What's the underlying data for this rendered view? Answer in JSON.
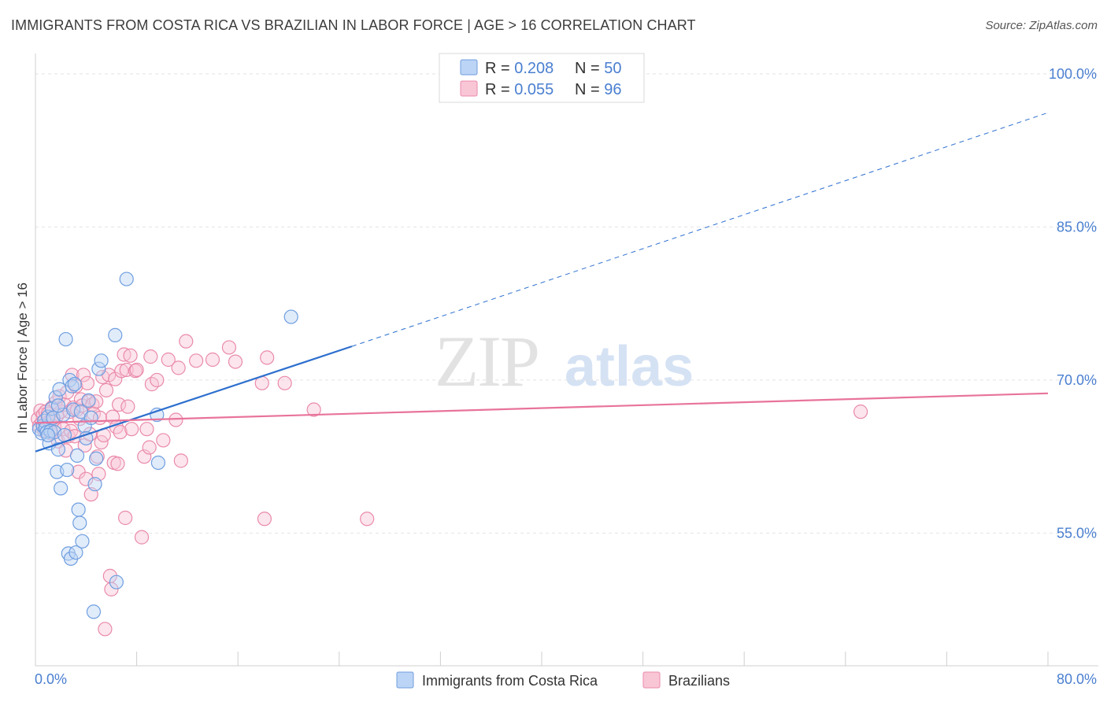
{
  "header": {
    "title": "IMMIGRANTS FROM COSTA RICA VS BRAZILIAN IN LABOR FORCE | AGE > 16 CORRELATION CHART",
    "source": "Source: ZipAtlas.com"
  },
  "legend": {
    "series": [
      {
        "r_label": "R = ",
        "r_value": "0.208",
        "n_label": "N = ",
        "n_value": "50"
      },
      {
        "r_label": "R = ",
        "r_value": "0.055",
        "n_label": "N = ",
        "n_value": "96"
      }
    ],
    "bottom": [
      "Immigrants from Costa Rica",
      "Brazilians"
    ]
  },
  "watermark": {
    "part1": "ZIP",
    "part2": "atlas"
  },
  "colors": {
    "blue_fill": "#bcd4f5",
    "blue_stroke": "#6f9ee0",
    "blue_line": "#2d6fce",
    "pink_fill": "#f9c6d6",
    "pink_stroke": "#ea8aaa",
    "pink_line": "#e8739b",
    "axis_text": "#4a7fd0"
  },
  "chart_data": {
    "type": "scatter",
    "title": "IMMIGRANTS FROM COSTA RICA VS BRAZILIAN IN LABOR FORCE | AGE > 16 CORRELATION CHART",
    "xlabel": "",
    "ylabel": "In Labor Force | Age > 16",
    "xlim": [
      0,
      80
    ],
    "ylim": [
      42,
      102
    ],
    "x_tick_labels": [
      "0.0%",
      "80.0%"
    ],
    "y_ticks": [
      55,
      70,
      85,
      100
    ],
    "y_tick_labels": [
      "55.0%",
      "70.0%",
      "85.0%",
      "100.0%"
    ],
    "grid": true,
    "legend_position": "top-center",
    "series": [
      {
        "name": "Immigrants from Costa Rica",
        "R": 0.208,
        "N": 50,
        "trend": {
          "x0": 0,
          "y0": 63.0,
          "x1": 25,
          "y1": 73.3,
          "dash_to_x": 80,
          "dash_to_y": 96.2
        },
        "points": [
          [
            0.3,
            65.2
          ],
          [
            0.5,
            64.8
          ],
          [
            0.6,
            65.5
          ],
          [
            0.7,
            66.0
          ],
          [
            0.8,
            65.3
          ],
          [
            0.9,
            64.9
          ],
          [
            1.0,
            66.4
          ],
          [
            1.1,
            63.8
          ],
          [
            1.2,
            65.0
          ],
          [
            1.3,
            67.2
          ],
          [
            1.4,
            66.3
          ],
          [
            1.5,
            64.9
          ],
          [
            1.6,
            68.3
          ],
          [
            1.7,
            61.0
          ],
          [
            1.8,
            63.2
          ],
          [
            1.9,
            69.1
          ],
          [
            2.0,
            59.4
          ],
          [
            2.2,
            66.6
          ],
          [
            2.4,
            74.0
          ],
          [
            2.5,
            61.2
          ],
          [
            2.6,
            53.0
          ],
          [
            2.7,
            70.0
          ],
          [
            2.8,
            52.5
          ],
          [
            2.9,
            69.4
          ],
          [
            3.0,
            67.1
          ],
          [
            3.1,
            69.6
          ],
          [
            3.2,
            53.1
          ],
          [
            3.3,
            62.6
          ],
          [
            3.4,
            57.3
          ],
          [
            3.5,
            56.0
          ],
          [
            3.6,
            66.9
          ],
          [
            3.7,
            54.2
          ],
          [
            3.9,
            65.5
          ],
          [
            4.0,
            64.3
          ],
          [
            4.2,
            68.0
          ],
          [
            4.4,
            66.3
          ],
          [
            4.6,
            47.3
          ],
          [
            4.7,
            59.8
          ],
          [
            4.8,
            62.3
          ],
          [
            5.0,
            71.1
          ],
          [
            5.2,
            71.9
          ],
          [
            6.3,
            74.4
          ],
          [
            6.4,
            50.2
          ],
          [
            7.2,
            79.9
          ],
          [
            9.6,
            66.6
          ],
          [
            9.7,
            61.9
          ],
          [
            20.2,
            76.2
          ],
          [
            1.0,
            64.6
          ],
          [
            2.3,
            64.6
          ],
          [
            1.8,
            67.5
          ]
        ]
      },
      {
        "name": "Brazilians",
        "R": 0.055,
        "N": 96,
        "trend": {
          "x0": 0,
          "y0": 65.8,
          "x1": 80,
          "y1": 68.7
        },
        "points": [
          [
            0.2,
            66.2
          ],
          [
            0.3,
            65.5
          ],
          [
            0.4,
            67.0
          ],
          [
            0.5,
            65.8
          ],
          [
            0.6,
            66.6
          ],
          [
            0.7,
            65.0
          ],
          [
            0.8,
            66.9
          ],
          [
            0.9,
            65.3
          ],
          [
            1.0,
            66.7
          ],
          [
            1.1,
            65.9
          ],
          [
            1.2,
            64.8
          ],
          [
            1.3,
            67.3
          ],
          [
            1.4,
            66.1
          ],
          [
            1.5,
            65.4
          ],
          [
            1.6,
            67.8
          ],
          [
            1.7,
            66.5
          ],
          [
            1.8,
            64.0
          ],
          [
            1.9,
            68.4
          ],
          [
            2.0,
            66.9
          ],
          [
            2.2,
            65.2
          ],
          [
            2.3,
            67.6
          ],
          [
            2.4,
            63.1
          ],
          [
            2.5,
            68.8
          ],
          [
            2.6,
            64.5
          ],
          [
            2.7,
            66.9
          ],
          [
            2.8,
            65.0
          ],
          [
            2.9,
            70.5
          ],
          [
            3.0,
            67.3
          ],
          [
            3.1,
            64.5
          ],
          [
            3.2,
            69.4
          ],
          [
            3.3,
            67.1
          ],
          [
            3.4,
            61.0
          ],
          [
            3.5,
            66.2
          ],
          [
            3.6,
            68.1
          ],
          [
            3.7,
            67.5
          ],
          [
            3.8,
            70.5
          ],
          [
            3.9,
            63.6
          ],
          [
            4.0,
            60.3
          ],
          [
            4.1,
            69.7
          ],
          [
            4.2,
            67.9
          ],
          [
            4.3,
            64.7
          ],
          [
            4.4,
            58.8
          ],
          [
            4.5,
            67.6
          ],
          [
            4.6,
            66.7
          ],
          [
            4.8,
            67.9
          ],
          [
            4.9,
            62.5
          ],
          [
            5.0,
            60.8
          ],
          [
            5.1,
            66.3
          ],
          [
            5.2,
            63.9
          ],
          [
            5.3,
            70.3
          ],
          [
            5.4,
            64.6
          ],
          [
            5.5,
            45.6
          ],
          [
            5.6,
            69.0
          ],
          [
            5.8,
            70.5
          ],
          [
            5.9,
            50.8
          ],
          [
            6.0,
            49.5
          ],
          [
            6.1,
            66.4
          ],
          [
            6.2,
            61.9
          ],
          [
            6.3,
            70.1
          ],
          [
            6.4,
            65.4
          ],
          [
            6.5,
            61.8
          ],
          [
            6.6,
            67.6
          ],
          [
            6.7,
            64.9
          ],
          [
            6.8,
            70.9
          ],
          [
            7.0,
            72.5
          ],
          [
            7.1,
            56.5
          ],
          [
            7.2,
            71.0
          ],
          [
            7.3,
            67.4
          ],
          [
            7.5,
            72.4
          ],
          [
            7.6,
            65.2
          ],
          [
            7.9,
            70.9
          ],
          [
            8.0,
            71.0
          ],
          [
            8.4,
            54.6
          ],
          [
            8.6,
            62.5
          ],
          [
            8.8,
            65.2
          ],
          [
            9.0,
            63.4
          ],
          [
            9.1,
            72.3
          ],
          [
            9.2,
            69.6
          ],
          [
            9.6,
            70.0
          ],
          [
            10.1,
            64.1
          ],
          [
            10.5,
            72.0
          ],
          [
            11.1,
            66.1
          ],
          [
            11.3,
            71.2
          ],
          [
            11.5,
            62.1
          ],
          [
            11.9,
            73.8
          ],
          [
            12.7,
            71.9
          ],
          [
            14.0,
            72.0
          ],
          [
            15.3,
            73.2
          ],
          [
            15.8,
            71.8
          ],
          [
            17.9,
            69.7
          ],
          [
            18.1,
            56.4
          ],
          [
            18.3,
            72.2
          ],
          [
            19.7,
            69.7
          ],
          [
            22.0,
            67.1
          ],
          [
            26.2,
            56.4
          ],
          [
            65.2,
            66.9
          ]
        ]
      }
    ]
  }
}
